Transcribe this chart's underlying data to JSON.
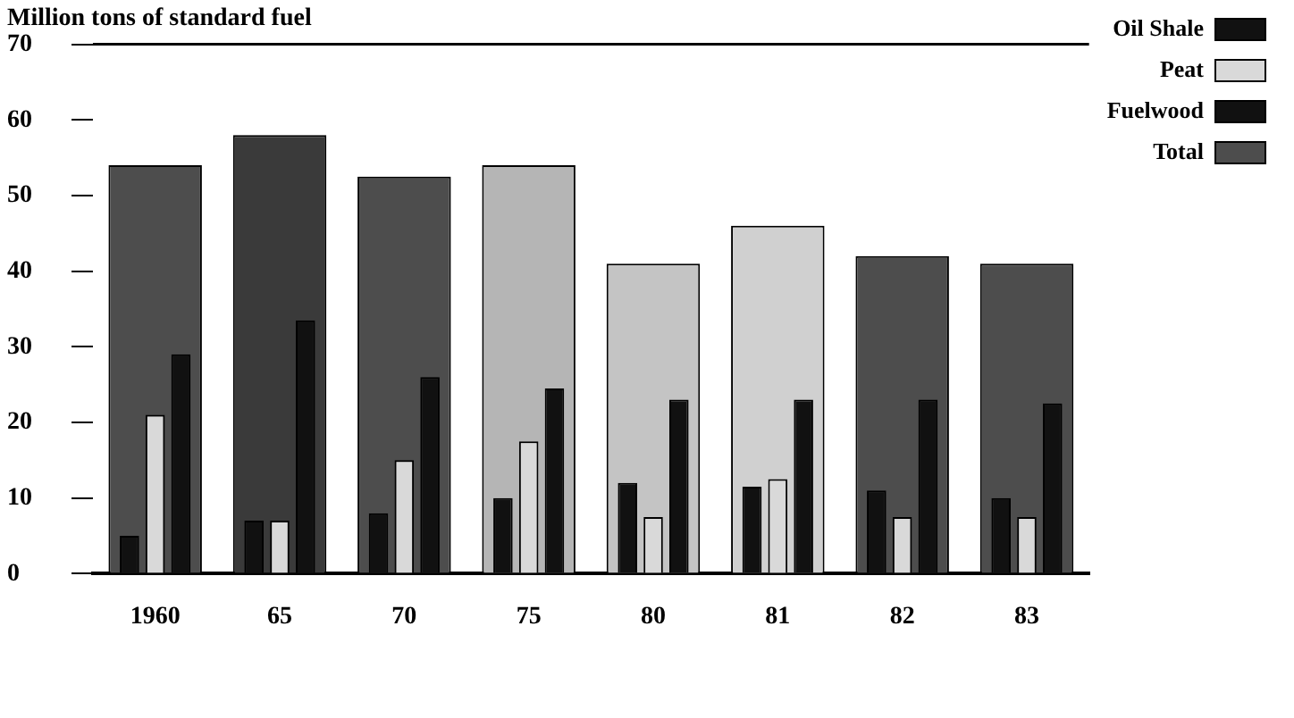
{
  "chart_data": {
    "type": "bar",
    "ylabel": "Million tons of standard fuel",
    "categories": [
      "1960",
      "65",
      "70",
      "75",
      "80",
      "81",
      "82",
      "83"
    ],
    "series": [
      {
        "name": "Oil Shale",
        "color": "#111111",
        "values": [
          5,
          7,
          8,
          10,
          12,
          11.5,
          11,
          10
        ]
      },
      {
        "name": "Peat",
        "color": "#d9d9d9",
        "values": [
          21,
          7,
          15,
          17.5,
          7.5,
          12.5,
          7.5,
          7.5
        ]
      },
      {
        "name": "Fuelwood",
        "color": "#111111",
        "values": [
          29,
          33.5,
          26,
          24.5,
          23,
          23,
          23,
          22.5
        ]
      },
      {
        "name": "Total",
        "color": "#4d4d4d",
        "colors": [
          "#4d4d4d",
          "#3a3a3a",
          "#4d4d4d",
          "#b5b5b5",
          "#c4c4c4",
          "#d0d0d0",
          "#4d4d4d",
          "#4d4d4d"
        ],
        "values": [
          54,
          58,
          52.5,
          54,
          41,
          46,
          42,
          41
        ]
      }
    ],
    "ylim": [
      0,
      70
    ],
    "yticks": [
      0,
      10,
      20,
      30,
      40,
      50,
      60,
      70
    ],
    "grid": false,
    "legend": "top right"
  }
}
